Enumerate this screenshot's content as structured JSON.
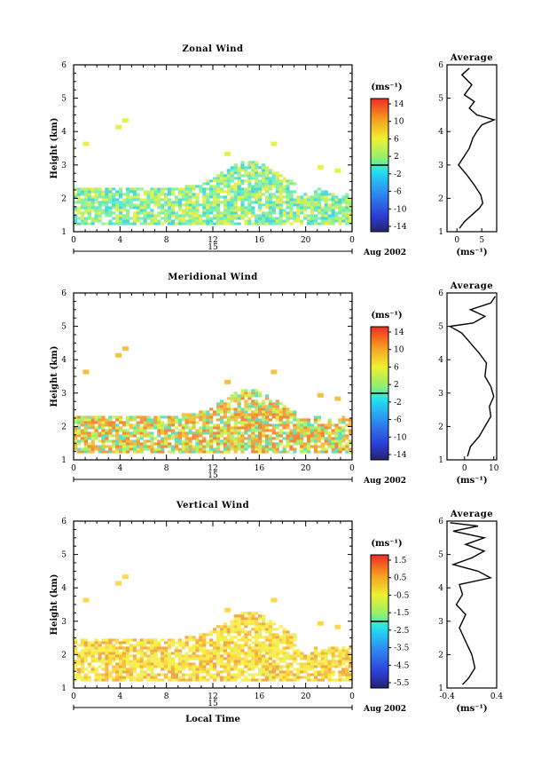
{
  "date_label": "Aug 2002",
  "day_label": "15",
  "x_axis_title": "Local Time",
  "avg_title": "Average",
  "unit_label": "(ms⁻¹)",
  "chart_data": [
    {
      "type": "heatmap",
      "title": "Zonal Wind",
      "xlabel": "",
      "ylabel": "Height (km)",
      "x_ticks": [
        "0",
        "4",
        "8",
        "12",
        "16",
        "20",
        "0"
      ],
      "xlim": [
        0,
        24
      ],
      "ylim": [
        1,
        6
      ],
      "y_ticks": [
        "1",
        "2",
        "3",
        "4",
        "5",
        "6"
      ],
      "colorbar": {
        "label": "(ms⁻¹)",
        "ticks": [
          "14",
          "10",
          "6",
          "2",
          "-2",
          "-6",
          "-10",
          "-14"
        ],
        "range": [
          -16,
          16
        ]
      },
      "average_profile": {
        "title": "Average",
        "xlabel": "(ms⁻¹)",
        "x_ticks": [
          "0",
          "5"
        ],
        "xlim": [
          -2,
          8
        ],
        "points": [
          [
            0.5,
            1.1
          ],
          [
            1.5,
            1.3
          ],
          [
            3,
            1.5
          ],
          [
            4.5,
            1.7
          ],
          [
            5.2,
            1.85
          ],
          [
            4.8,
            2.1
          ],
          [
            3.5,
            2.4
          ],
          [
            2,
            2.7
          ],
          [
            0.3,
            3.0
          ],
          [
            1.2,
            3.2
          ],
          [
            2.5,
            3.5
          ],
          [
            3.2,
            3.8
          ],
          [
            4,
            4.0
          ],
          [
            5,
            4.2
          ],
          [
            7.5,
            4.35
          ],
          [
            4,
            4.5
          ],
          [
            2.5,
            4.7
          ],
          [
            3.5,
            4.9
          ],
          [
            1.5,
            5.1
          ],
          [
            3,
            5.4
          ],
          [
            1,
            5.7
          ],
          [
            2.5,
            5.9
          ]
        ]
      }
    },
    {
      "type": "heatmap",
      "title": "Meridional Wind",
      "xlabel": "",
      "ylabel": "Height (km)",
      "x_ticks": [
        "0",
        "4",
        "8",
        "12",
        "16",
        "20",
        "0"
      ],
      "xlim": [
        0,
        24
      ],
      "ylim": [
        1,
        6
      ],
      "y_ticks": [
        "1",
        "2",
        "3",
        "4",
        "5",
        "6"
      ],
      "colorbar": {
        "label": "(ms⁻¹)",
        "ticks": [
          "14",
          "10",
          "6",
          "2",
          "-2",
          "-6",
          "-10",
          "-14"
        ],
        "range": [
          -16,
          16
        ]
      },
      "average_profile": {
        "title": "Average",
        "xlabel": "(ms⁻¹)",
        "x_ticks": [
          "0",
          "10"
        ],
        "xlim": [
          -6,
          11
        ],
        "points": [
          [
            1,
            1.1
          ],
          [
            2,
            1.4
          ],
          [
            5,
            1.7
          ],
          [
            7,
            2.0
          ],
          [
            9,
            2.3
          ],
          [
            8.5,
            2.6
          ],
          [
            10,
            2.9
          ],
          [
            9,
            3.2
          ],
          [
            7,
            3.5
          ],
          [
            7.5,
            3.9
          ],
          [
            5,
            4.2
          ],
          [
            3,
            4.4
          ],
          [
            1,
            4.6
          ],
          [
            -1,
            4.8
          ],
          [
            -5,
            5.0
          ],
          [
            3,
            5.1
          ],
          [
            7,
            5.3
          ],
          [
            2,
            5.5
          ],
          [
            9,
            5.7
          ],
          [
            10.5,
            5.9
          ]
        ]
      }
    },
    {
      "type": "heatmap",
      "title": "Vertical Wind",
      "xlabel": "Local Time",
      "ylabel": "Height (km)",
      "x_ticks": [
        "0",
        "4",
        "8",
        "12",
        "16",
        "20",
        "0"
      ],
      "xlim": [
        0,
        24
      ],
      "ylim": [
        1,
        6
      ],
      "y_ticks": [
        "1",
        "2",
        "3",
        "4",
        "5",
        "6"
      ],
      "colorbar": {
        "label": "(ms⁻¹)",
        "ticks": [
          "1.5",
          "0.5",
          "-0.5",
          "-1.5",
          "-2.5",
          "-3.5",
          "-4.5",
          "-5.5"
        ],
        "range": [
          -6,
          2
        ]
      },
      "average_profile": {
        "title": "Average",
        "xlabel": "(ms⁻¹)",
        "x_ticks": [
          "-0.4",
          "0.4"
        ],
        "xlim": [
          -0.4,
          0.4
        ],
        "points": [
          [
            -0.15,
            1.1
          ],
          [
            -0.05,
            1.3
          ],
          [
            0.05,
            1.6
          ],
          [
            0.0,
            2.0
          ],
          [
            -0.1,
            2.4
          ],
          [
            -0.2,
            2.8
          ],
          [
            -0.1,
            3.2
          ],
          [
            -0.25,
            3.5
          ],
          [
            -0.15,
            3.8
          ],
          [
            -0.2,
            4.1
          ],
          [
            0.3,
            4.3
          ],
          [
            0.1,
            4.5
          ],
          [
            -0.3,
            4.7
          ],
          [
            0.0,
            4.9
          ],
          [
            0.2,
            5.1
          ],
          [
            -0.1,
            5.3
          ],
          [
            0.2,
            5.5
          ],
          [
            -0.3,
            5.7
          ],
          [
            0.1,
            5.85
          ],
          [
            -0.35,
            5.95
          ]
        ]
      }
    }
  ]
}
